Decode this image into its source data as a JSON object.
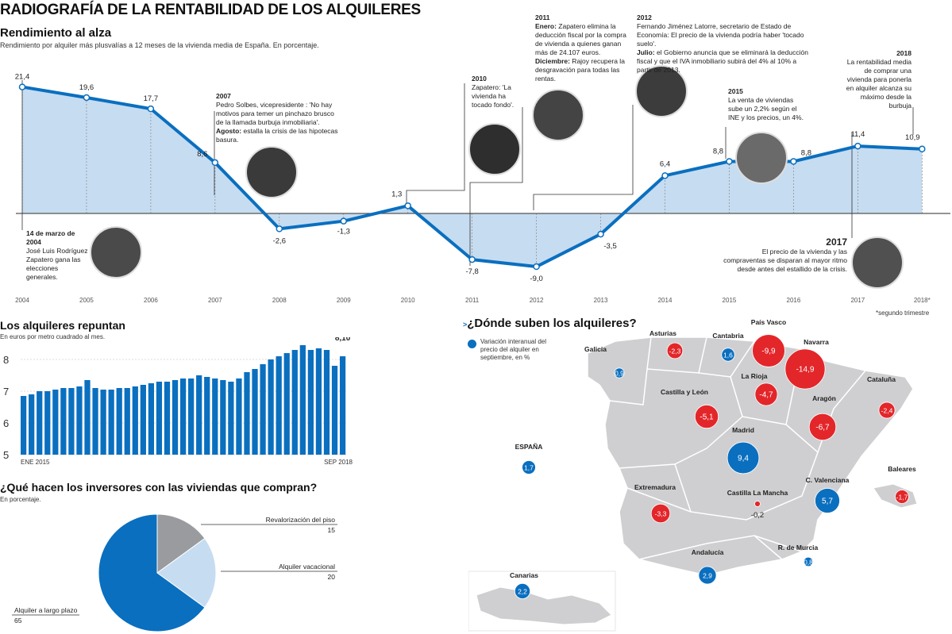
{
  "header": {
    "title": "RADIOGRAFÍA DE LA RENTABILIDAD DE LOS ALQUILERES"
  },
  "colors": {
    "blue": "#0a6fbf",
    "red": "#e3262a",
    "area": "#c6dcf1",
    "map": "#cfcfd1"
  },
  "chart_data": [
    {
      "type": "line",
      "title": "Rendimiento al alza",
      "subtitle": "Rendimiento por alquiler más plusvalías a 12 meses de la vivienda media de España. En porcentaje.",
      "categories": [
        "2004",
        "2005",
        "2006",
        "2007",
        "2008",
        "2009",
        "2010",
        "2011",
        "2012",
        "2013",
        "2014",
        "2015",
        "2016",
        "2017",
        "2018*"
      ],
      "values": [
        21.4,
        19.6,
        17.7,
        8.6,
        -2.6,
        -1.3,
        1.3,
        -7.8,
        -9.0,
        -3.5,
        6.4,
        8.8,
        8.8,
        11.4,
        10.9
      ],
      "value_labels": [
        "21,4",
        "19,6",
        "17,7",
        "8,6",
        "-2,6",
        "-1,3",
        "1,3",
        "-7,8",
        "-9,0",
        "-3,5",
        "6,4",
        "8,8",
        "8,8",
        "11,4",
        "10,9"
      ],
      "footnote": "*segundo trimestre"
    },
    {
      "type": "bar",
      "title": "Los alquileres repuntan",
      "subtitle": "En euros por metro cuadrado al mes.",
      "x_start_label": "ENE 2015",
      "x_end_label": "SEP 2018",
      "yticks": [
        "8",
        "7",
        "6",
        "5"
      ],
      "ylim": [
        5,
        8.6
      ],
      "values": [
        6.85,
        6.9,
        7.0,
        7.0,
        7.05,
        7.1,
        7.1,
        7.15,
        7.35,
        7.1,
        7.05,
        7.05,
        7.1,
        7.1,
        7.15,
        7.2,
        7.25,
        7.3,
        7.3,
        7.35,
        7.4,
        7.4,
        7.5,
        7.45,
        7.4,
        7.35,
        7.3,
        7.4,
        7.6,
        7.7,
        7.85,
        8.0,
        8.1,
        8.2,
        8.3,
        8.45,
        8.3,
        8.35,
        8.3,
        7.8,
        8.1
      ],
      "last_label": "8,10"
    },
    {
      "type": "pie",
      "title": "¿Qué hacen los inversores con las viviendas que compran?",
      "subtitle": "En porcentaje.",
      "slices": [
        {
          "label": "Revalorización del piso",
          "value": 15,
          "value_label": "15",
          "color": "#999b9e"
        },
        {
          "label": "Alquiler vacacional",
          "value": 20,
          "value_label": "20",
          "color": "#c6dcf1"
        },
        {
          "label": "Alquiler a largo plazo",
          "value": 65,
          "value_label": "65",
          "color": "#0a6fbf"
        }
      ]
    },
    {
      "type": "map",
      "title": "¿Dónde suben los alquileres?",
      "legend": "Variación interanual del precio del alquiler en septiembre, en %",
      "regions": [
        {
          "name": "Galicia",
          "value": "0,9",
          "v": 0.9
        },
        {
          "name": "Asturias",
          "value": "-2,3",
          "v": -2.3
        },
        {
          "name": "Cantabria",
          "value": "1,6",
          "v": 1.6
        },
        {
          "name": "País Vasco",
          "value": "-9,9",
          "v": -9.9
        },
        {
          "name": "Navarra",
          "value": "-14,9",
          "v": -14.9
        },
        {
          "name": "La Rioja",
          "value": "-4,7",
          "v": -4.7
        },
        {
          "name": "Cataluña",
          "value": "-2,4",
          "v": -2.4
        },
        {
          "name": "Castilla y León",
          "value": "-5,1",
          "v": -5.1
        },
        {
          "name": "Aragón",
          "value": "-6,7",
          "v": -6.7
        },
        {
          "name": "Madrid",
          "value": "9,4",
          "v": 9.4
        },
        {
          "name": "ESPAÑA",
          "value": "1,7",
          "v": 1.7
        },
        {
          "name": "Extremadura",
          "value": "-3,3",
          "v": -3.3
        },
        {
          "name": "Castilla La Mancha",
          "value": "-0,2",
          "v": -0.2
        },
        {
          "name": "C. Valenciana",
          "value": "5,7",
          "v": 5.7
        },
        {
          "name": "Baleares",
          "value": "-1,7",
          "v": -1.7
        },
        {
          "name": "Andalucía",
          "value": "2,9",
          "v": 2.9
        },
        {
          "name": "R. de Murcia",
          "value": "0,8",
          "v": 0.8
        },
        {
          "name": "Canarias",
          "value": "2,2",
          "v": 2.2
        }
      ]
    }
  ],
  "annotations": {
    "a2004": {
      "head": "14 de marzo de 2004",
      "body": "José Luis Rodríguez Zapatero gana las elecciones generales."
    },
    "a2007": {
      "year": "2007",
      "l1": "Pedro Solbes, vicepresidente : 'No hay motivos para temer un pinchazo brusco de la llamada burbuja inmobiliaria'.",
      "l2b": "Agosto:",
      "l2": " estalla la crisis de las hipotecas basura."
    },
    "a2010": {
      "year": "2010",
      "body": "Zapatero: 'La vivienda ha tocado fondo'."
    },
    "a2011": {
      "year": "2011",
      "l1b": "Enero:",
      "l1": " Zapatero elimina la deducción fiscal por la compra de vivienda a quienes ganan más de 24.107 euros.",
      "l2b": "Diciembre:",
      "l2": " Rajoy recupera la desgravación para todas las rentas."
    },
    "a2012": {
      "year": "2012",
      "l1": "Fernando Jiménez Latorre, secretario de Estado de Economía: El precio de la vivienda podría haber 'tocado suelo'.",
      "l2b": "Julio:",
      "l2": " el Gobierno anuncia que se eliminará la deducción fiscal y que el IVA inmobiliario subirá del 4% al 10% a partir de 2013."
    },
    "a2015": {
      "year": "2015",
      "body": "La venta de viviendas sube un 2,2% según el INE y los precios, un 4%."
    },
    "a2017": {
      "year": "2017",
      "body": "El precio de la vivienda y las compraventas se disparan al mayor ritmo desde antes del estallido de la crisis."
    },
    "a2018": {
      "year": "2018",
      "body": "La rentabilidad media de comprar una vivienda para ponerla en alquiler alcanza su máximo desde la burbuja"
    }
  }
}
